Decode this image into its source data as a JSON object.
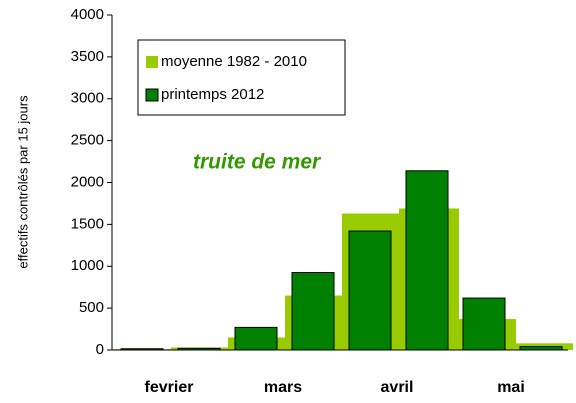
{
  "chart_data": {
    "type": "bar",
    "y_label": "effectifs contrôlés par 15 jours",
    "annotation": "truite de mer",
    "categories": [
      "fevrier",
      null,
      "mars",
      null,
      "avril",
      null,
      "mai",
      null
    ],
    "series": [
      {
        "name": "moyenne 1982 - 2010",
        "color": "#99cc00",
        "values": [
          10,
          30,
          150,
          650,
          1630,
          1690,
          370,
          80
        ]
      },
      {
        "name": "printemps 2012",
        "color": "#008000",
        "values": [
          15,
          20,
          270,
          925,
          1420,
          2140,
          620,
          40
        ]
      }
    ],
    "ylim": [
      0,
      4000
    ],
    "yticks": [
      0,
      500,
      1000,
      1500,
      2000,
      2500,
      3000,
      3500,
      4000
    ],
    "grid": false
  }
}
